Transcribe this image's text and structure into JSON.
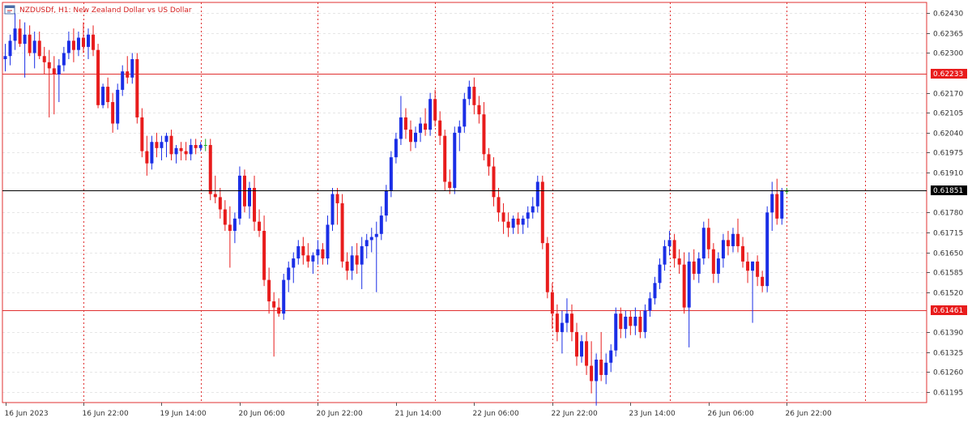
{
  "header": {
    "symbol_line": "NZDUSDf, H1:  New Zealand Dollar vs US Dollar",
    "icon": "chart-window-icon"
  },
  "colors": {
    "bull": "#1a2ee6",
    "bear": "#e81c1c",
    "neutral": "#22aa22",
    "grid": "#e6e6e6",
    "vsep": "#e03030",
    "frame": "#e03030",
    "level": "#e03030",
    "current": "#000000",
    "badge_level": "#e81c1c",
    "badge_current": "#000000"
  },
  "chart_data": {
    "type": "candlestick",
    "symbol": "NZDUSDf",
    "timeframe": "H1",
    "ylim": [
      0.6116,
      0.62465
    ],
    "y_ticks": [
      0.6243,
      0.62365,
      0.623,
      0.6217,
      0.62105,
      0.6204,
      0.61975,
      0.6191,
      0.6178,
      0.61715,
      0.6165,
      0.61585,
      0.6152,
      0.6139,
      0.61325,
      0.6126,
      0.61195
    ],
    "y_tick_labels": [
      "0.62430",
      "0.62365",
      "0.62300",
      "0.62170",
      "0.62105",
      "0.62040",
      "0.61975",
      "0.61910",
      "0.61780",
      "0.61715",
      "0.61650",
      "0.61585",
      "0.61520",
      "0.61390",
      "0.61325",
      "0.61260",
      "0.61195"
    ],
    "levels": [
      {
        "value": 0.62233,
        "label": "0.62233"
      },
      {
        "value": 0.61461,
        "label": "0.61461"
      }
    ],
    "current_price": {
      "value": 0.61851,
      "label": "0.61851"
    },
    "x_labels": [
      "16 Jun 2023",
      "16 Jun 22:00",
      "19 Jun 14:00",
      "20 Jun 06:00",
      "20 Jun 22:00",
      "21 Jun 14:00",
      "22 Jun 06:00",
      "22 Jun 22:00",
      "23 Jun 14:00",
      "26 Jun 06:00",
      "26 Jun 22:00"
    ],
    "label_bar_index": [
      0,
      16,
      32,
      48,
      64,
      80,
      96,
      112,
      128,
      144,
      160
    ],
    "separator_bar_index": [
      16,
      40,
      64,
      88,
      112,
      136,
      160,
      176
    ],
    "candles": [
      [
        0.6228,
        0.6233,
        0.6224,
        0.6229
      ],
      [
        0.6229,
        0.6236,
        0.6226,
        0.6234
      ],
      [
        0.6234,
        0.6243,
        0.6231,
        0.6238
      ],
      [
        0.6238,
        0.6241,
        0.6232,
        0.6233
      ],
      [
        0.6233,
        0.624,
        0.6222,
        0.6236
      ],
      [
        0.6236,
        0.6239,
        0.6229,
        0.623
      ],
      [
        0.623,
        0.6237,
        0.6225,
        0.6234
      ],
      [
        0.6234,
        0.6237,
        0.6228,
        0.6229
      ],
      [
        0.6229,
        0.6232,
        0.6223,
        0.6227
      ],
      [
        0.6227,
        0.6231,
        0.6209,
        0.6225
      ],
      [
        0.6225,
        0.6229,
        0.621,
        0.6223
      ],
      [
        0.6223,
        0.6228,
        0.6214,
        0.6226
      ],
      [
        0.6226,
        0.6232,
        0.6224,
        0.623
      ],
      [
        0.623,
        0.6237,
        0.6228,
        0.6234
      ],
      [
        0.6234,
        0.6238,
        0.6227,
        0.6231
      ],
      [
        0.6231,
        0.6237,
        0.6229,
        0.6235
      ],
      [
        0.6235,
        0.624,
        0.623,
        0.6232
      ],
      [
        0.6232,
        0.6238,
        0.6228,
        0.6236
      ],
      [
        0.6236,
        0.6239,
        0.6229,
        0.6231
      ],
      [
        0.6231,
        0.6233,
        0.6212,
        0.6213
      ],
      [
        0.6213,
        0.622,
        0.6212,
        0.6219
      ],
      [
        0.6219,
        0.6222,
        0.6212,
        0.6214
      ],
      [
        0.6214,
        0.6217,
        0.6204,
        0.6207
      ],
      [
        0.6207,
        0.622,
        0.6205,
        0.6218
      ],
      [
        0.6218,
        0.6226,
        0.6216,
        0.6224
      ],
      [
        0.6224,
        0.6229,
        0.622,
        0.6222
      ],
      [
        0.6222,
        0.623,
        0.622,
        0.6228
      ],
      [
        0.6228,
        0.623,
        0.6207,
        0.6209
      ],
      [
        0.6209,
        0.6212,
        0.6196,
        0.6198
      ],
      [
        0.6198,
        0.6203,
        0.619,
        0.6194
      ],
      [
        0.6194,
        0.6203,
        0.6192,
        0.6201
      ],
      [
        0.6201,
        0.6204,
        0.6196,
        0.6199
      ],
      [
        0.6199,
        0.6203,
        0.6195,
        0.6201
      ],
      [
        0.6201,
        0.6204,
        0.6196,
        0.6203
      ],
      [
        0.6203,
        0.6205,
        0.6195,
        0.6197
      ],
      [
        0.6197,
        0.62,
        0.6194,
        0.6199
      ],
      [
        0.6199,
        0.6201,
        0.6195,
        0.6198
      ],
      [
        0.6198,
        0.6201,
        0.6195,
        0.6197
      ],
      [
        0.6197,
        0.6202,
        0.6195,
        0.62
      ],
      [
        0.62,
        0.6202,
        0.6197,
        0.6199
      ],
      [
        0.6199,
        0.6201,
        0.6198,
        0.62
      ],
      [
        0.62,
        0.6202,
        0.6198,
        0.62
      ],
      [
        0.62,
        0.6202,
        0.6182,
        0.6184
      ],
      [
        0.6184,
        0.619,
        0.6181,
        0.6183
      ],
      [
        0.6183,
        0.6186,
        0.6176,
        0.6179
      ],
      [
        0.6179,
        0.6182,
        0.6172,
        0.6174
      ],
      [
        0.6174,
        0.618,
        0.616,
        0.6172
      ],
      [
        0.6172,
        0.6178,
        0.6168,
        0.6176
      ],
      [
        0.6176,
        0.6193,
        0.6174,
        0.619
      ],
      [
        0.619,
        0.6192,
        0.6178,
        0.618
      ],
      [
        0.618,
        0.6188,
        0.6176,
        0.6186
      ],
      [
        0.6186,
        0.619,
        0.6172,
        0.6175
      ],
      [
        0.6175,
        0.6179,
        0.617,
        0.6172
      ],
      [
        0.6172,
        0.6177,
        0.6154,
        0.6156
      ],
      [
        0.6156,
        0.616,
        0.6145,
        0.6149
      ],
      [
        0.6149,
        0.6152,
        0.6131,
        0.6147
      ],
      [
        0.6147,
        0.615,
        0.6144,
        0.6145
      ],
      [
        0.6145,
        0.6158,
        0.6143,
        0.6156
      ],
      [
        0.6156,
        0.6162,
        0.6152,
        0.616
      ],
      [
        0.616,
        0.6165,
        0.6155,
        0.6163
      ],
      [
        0.6163,
        0.6169,
        0.6161,
        0.6167
      ],
      [
        0.6167,
        0.617,
        0.6161,
        0.6164
      ],
      [
        0.6164,
        0.6168,
        0.616,
        0.6162
      ],
      [
        0.6162,
        0.6165,
        0.6158,
        0.6164
      ],
      [
        0.6164,
        0.6169,
        0.6161,
        0.6166
      ],
      [
        0.6166,
        0.6168,
        0.6161,
        0.6163
      ],
      [
        0.6163,
        0.6177,
        0.6161,
        0.6174
      ],
      [
        0.6174,
        0.6186,
        0.6172,
        0.6184
      ],
      [
        0.6184,
        0.6186,
        0.6174,
        0.6181
      ],
      [
        0.6181,
        0.6184,
        0.616,
        0.6162
      ],
      [
        0.6162,
        0.6165,
        0.6156,
        0.6159
      ],
      [
        0.6159,
        0.6167,
        0.6156,
        0.6164
      ],
      [
        0.6164,
        0.6168,
        0.6158,
        0.6161
      ],
      [
        0.6161,
        0.617,
        0.6153,
        0.6167
      ],
      [
        0.6167,
        0.6171,
        0.6163,
        0.6169
      ],
      [
        0.6169,
        0.6173,
        0.6165,
        0.617
      ],
      [
        0.617,
        0.6175,
        0.6152,
        0.6171
      ],
      [
        0.6171,
        0.618,
        0.6169,
        0.6177
      ],
      [
        0.6177,
        0.6187,
        0.6175,
        0.6185
      ],
      [
        0.6185,
        0.6198,
        0.6183,
        0.6196
      ],
      [
        0.6196,
        0.6204,
        0.6194,
        0.6202
      ],
      [
        0.6202,
        0.6216,
        0.62,
        0.6209
      ],
      [
        0.6209,
        0.6212,
        0.6202,
        0.6205
      ],
      [
        0.6205,
        0.6208,
        0.6198,
        0.6201
      ],
      [
        0.6201,
        0.6206,
        0.6199,
        0.6204
      ],
      [
        0.6204,
        0.6209,
        0.6201,
        0.6207
      ],
      [
        0.6207,
        0.6212,
        0.6203,
        0.6205
      ],
      [
        0.6205,
        0.6217,
        0.6203,
        0.6215
      ],
      [
        0.6215,
        0.6218,
        0.6206,
        0.6208
      ],
      [
        0.6208,
        0.6211,
        0.62,
        0.6203
      ],
      [
        0.6203,
        0.6205,
        0.6185,
        0.6188
      ],
      [
        0.6188,
        0.6192,
        0.6184,
        0.6186
      ],
      [
        0.6186,
        0.6206,
        0.6184,
        0.6204
      ],
      [
        0.6204,
        0.6208,
        0.6198,
        0.6206
      ],
      [
        0.6206,
        0.6217,
        0.6204,
        0.6215
      ],
      [
        0.6215,
        0.6221,
        0.6213,
        0.6219
      ],
      [
        0.6219,
        0.6222,
        0.621,
        0.6213
      ],
      [
        0.6213,
        0.6216,
        0.6207,
        0.621
      ],
      [
        0.621,
        0.6214,
        0.6195,
        0.6197
      ],
      [
        0.6197,
        0.6199,
        0.619,
        0.6193
      ],
      [
        0.6193,
        0.6196,
        0.618,
        0.6183
      ],
      [
        0.6183,
        0.6186,
        0.6175,
        0.6178
      ],
      [
        0.6178,
        0.6181,
        0.6171,
        0.6175
      ],
      [
        0.6175,
        0.6178,
        0.617,
        0.6173
      ],
      [
        0.6173,
        0.6177,
        0.6171,
        0.6176
      ],
      [
        0.6176,
        0.6178,
        0.6171,
        0.6174
      ],
      [
        0.6174,
        0.6177,
        0.6171,
        0.6176
      ],
      [
        0.6176,
        0.618,
        0.6173,
        0.6178
      ],
      [
        0.6178,
        0.6183,
        0.6176,
        0.618
      ],
      [
        0.618,
        0.619,
        0.6178,
        0.6188
      ],
      [
        0.6188,
        0.619,
        0.6166,
        0.6168
      ],
      [
        0.6168,
        0.617,
        0.615,
        0.6152
      ],
      [
        0.6152,
        0.6155,
        0.614,
        0.6145
      ],
      [
        0.6145,
        0.6148,
        0.6136,
        0.6139
      ],
      [
        0.6139,
        0.6146,
        0.6132,
        0.6142
      ],
      [
        0.6142,
        0.615,
        0.6139,
        0.6145
      ],
      [
        0.6145,
        0.6148,
        0.6136,
        0.6139
      ],
      [
        0.6139,
        0.6142,
        0.6128,
        0.6131
      ],
      [
        0.6131,
        0.6138,
        0.6129,
        0.6136
      ],
      [
        0.6136,
        0.6139,
        0.6125,
        0.6128
      ],
      [
        0.6128,
        0.6136,
        0.6119,
        0.6123
      ],
      [
        0.6123,
        0.6132,
        0.6115,
        0.613
      ],
      [
        0.613,
        0.6139,
        0.6123,
        0.6125
      ],
      [
        0.6125,
        0.6132,
        0.6122,
        0.6129
      ],
      [
        0.6129,
        0.6135,
        0.6126,
        0.6133
      ],
      [
        0.6133,
        0.6147,
        0.6131,
        0.6145
      ],
      [
        0.6145,
        0.6147,
        0.6137,
        0.614
      ],
      [
        0.614,
        0.6146,
        0.6137,
        0.6144
      ],
      [
        0.6144,
        0.6146,
        0.6138,
        0.6141
      ],
      [
        0.6141,
        0.6147,
        0.6138,
        0.6144
      ],
      [
        0.6144,
        0.6146,
        0.6137,
        0.6139
      ],
      [
        0.6139,
        0.6148,
        0.6137,
        0.6146
      ],
      [
        0.6146,
        0.6152,
        0.6144,
        0.615
      ],
      [
        0.615,
        0.6157,
        0.6148,
        0.6155
      ],
      [
        0.6155,
        0.6163,
        0.6153,
        0.6161
      ],
      [
        0.6161,
        0.6169,
        0.6159,
        0.6167
      ],
      [
        0.6167,
        0.6172,
        0.6164,
        0.6169
      ],
      [
        0.6169,
        0.6171,
        0.616,
        0.6163
      ],
      [
        0.6163,
        0.6166,
        0.6158,
        0.6161
      ],
      [
        0.6161,
        0.6165,
        0.6145,
        0.6147
      ],
      [
        0.6147,
        0.6165,
        0.6134,
        0.6162
      ],
      [
        0.6162,
        0.6166,
        0.6156,
        0.6158
      ],
      [
        0.6158,
        0.6165,
        0.6155,
        0.6163
      ],
      [
        0.6163,
        0.6175,
        0.6161,
        0.6173
      ],
      [
        0.6173,
        0.6176,
        0.6163,
        0.6166
      ],
      [
        0.6166,
        0.6168,
        0.6155,
        0.6158
      ],
      [
        0.6158,
        0.6165,
        0.6155,
        0.6163
      ],
      [
        0.6163,
        0.6171,
        0.616,
        0.6169
      ],
      [
        0.6169,
        0.6172,
        0.6164,
        0.6167
      ],
      [
        0.6167,
        0.6173,
        0.6165,
        0.6171
      ],
      [
        0.6171,
        0.6176,
        0.6165,
        0.6167
      ],
      [
        0.6167,
        0.617,
        0.616,
        0.6162
      ],
      [
        0.6162,
        0.6165,
        0.6155,
        0.6159
      ],
      [
        0.6159,
        0.6162,
        0.6142,
        0.6162
      ],
      [
        0.6162,
        0.6164,
        0.6154,
        0.6157
      ],
      [
        0.6157,
        0.6159,
        0.6152,
        0.6154
      ],
      [
        0.6154,
        0.618,
        0.6152,
        0.6178
      ],
      [
        0.6178,
        0.6188,
        0.6172,
        0.6184
      ],
      [
        0.6184,
        0.6189,
        0.6174,
        0.6176
      ],
      [
        0.6176,
        0.6186,
        0.6174,
        0.6185
      ],
      [
        0.6185,
        0.6186,
        0.6184,
        0.6185
      ]
    ]
  }
}
